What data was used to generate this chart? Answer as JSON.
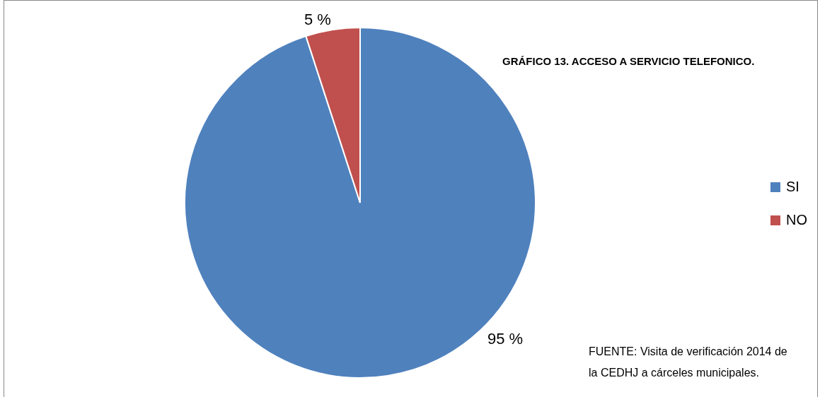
{
  "chart_data": {
    "type": "pie",
    "title": "GRÁFICO 13. ACCESO A SERVICIO TELEFONICO.",
    "categories": [
      "SI",
      "NO"
    ],
    "values": [
      95,
      5
    ],
    "colors": [
      "#4f81bd",
      "#c0504d"
    ],
    "value_labels": [
      "95 %",
      "5 %"
    ],
    "legend": "right",
    "annotations": [
      "FUENTE: Visita de verificación 2014 de la CEDHJ a cárceles municipales."
    ]
  }
}
